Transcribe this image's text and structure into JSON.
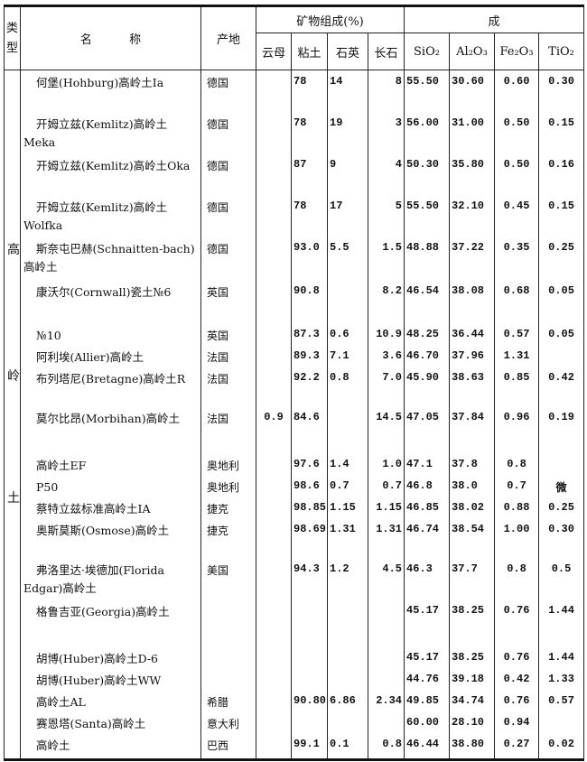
{
  "header": {
    "type": "类型",
    "name": "名          称",
    "origin": "产地",
    "mineral_group": "矿物组成(%)",
    "chem_group": "成",
    "mica": "云母",
    "clay": "粘土",
    "quartz": "石英",
    "feldspar": "长石",
    "sio2": "SiO₂",
    "al2o3": "Al₂O₃",
    "fe2o3": "Fe₂O₃",
    "tio2": "TiO₂"
  },
  "type_label": [
    "高",
    "岭",
    "土"
  ],
  "rows": [
    {
      "name": "何堡(Hohburg)高岭土Ia",
      "origin": "德国",
      "mica": "",
      "clay": "78",
      "quartz": "14",
      "feldspar": "8",
      "sio2": "55.50",
      "al2o3": "30.60",
      "fe2o3": "0.60",
      "tio2": "0.30"
    },
    {
      "name": "开姆立兹(Kemlitz)高岭土Meka",
      "origin": "德国",
      "mica": "",
      "clay": "78",
      "quartz": "19",
      "feldspar": "3",
      "sio2": "56.00",
      "al2o3": "31.00",
      "fe2o3": "0.50",
      "tio2": "0.15"
    },
    {
      "name": "开姆立兹(Kemlitz)高岭土Oka",
      "origin": "德国",
      "mica": "",
      "clay": "87",
      "quartz": "9",
      "feldspar": "4",
      "sio2": "50.30",
      "al2o3": "35.80",
      "fe2o3": "0.50",
      "tio2": "0.16"
    },
    {
      "name": "开姆立兹(Kemlitz)高岭土Wolfka",
      "origin": "德国",
      "mica": "",
      "clay": "78",
      "quartz": "17",
      "feldspar": "5",
      "sio2": "55.50",
      "al2o3": "32.10",
      "fe2o3": "0.45",
      "tio2": "0.15"
    },
    {
      "name": "斯奈屯巴赫(Schnaitten-bach)高岭土",
      "origin": "德国",
      "mica": "",
      "clay": "93.0",
      "quartz": "5.5",
      "feldspar": "1.5",
      "sio2": "48.88",
      "al2o3": "37.22",
      "fe2o3": "0.35",
      "tio2": "0.25"
    },
    {
      "name": "康沃尔(Cornwall)瓷土№6",
      "origin": "英国",
      "mica": "",
      "clay": "90.8",
      "quartz": "",
      "feldspar": "8.2",
      "sio2": "46.54",
      "al2o3": "38.08",
      "fe2o3": "0.68",
      "tio2": "0.05"
    },
    {
      "name": "№10",
      "origin": "英国",
      "mica": "",
      "clay": "87.3",
      "quartz": "0.6",
      "feldspar": "10.9",
      "sio2": "48.25",
      "al2o3": "36.44",
      "fe2o3": "0.57",
      "tio2": "0.05"
    },
    {
      "name": "阿利埃(Allier)高岭土",
      "origin": "法国",
      "mica": "",
      "clay": "89.3",
      "quartz": "7.1",
      "feldspar": "3.6",
      "sio2": "46.70",
      "al2o3": "37.96",
      "fe2o3": "1.31",
      "tio2": ""
    },
    {
      "name": "布列塔尼(Bretagne)高岭土R",
      "origin": "法国",
      "mica": "",
      "clay": "92.2",
      "quartz": "0.8",
      "feldspar": "7.0",
      "sio2": "45.90",
      "al2o3": "38.63",
      "fe2o3": "0.85",
      "tio2": "0.42"
    },
    {
      "name": "莫尔比昂(Morbihan)高岭土",
      "origin": "法国",
      "mica": "0.9",
      "clay": "84.6",
      "quartz": "",
      "feldspar": "14.5",
      "sio2": "47.05",
      "al2o3": "37.84",
      "fe2o3": "0.96",
      "tio2": "0.19"
    },
    {
      "name": "高岭土EF",
      "origin": "奥地利",
      "mica": "",
      "clay": "97.6",
      "quartz": "1.4",
      "feldspar": "1.0",
      "sio2": "47.1",
      "al2o3": "37.8",
      "fe2o3": "0.8",
      "tio2": ""
    },
    {
      "name": "P50",
      "origin": "奥地利",
      "mica": "",
      "clay": "98.6",
      "quartz": "0.7",
      "feldspar": "0.7",
      "sio2": "46.8",
      "al2o3": "38.0",
      "fe2o3": "0.7",
      "tio2": "微"
    },
    {
      "name": "蔡特立兹标准高岭土IA",
      "origin": "捷克",
      "mica": "",
      "clay": "98.85",
      "quartz": "1.15",
      "feldspar": "1.15",
      "sio2": "46.85",
      "al2o3": "38.02",
      "fe2o3": "0.88",
      "tio2": "0.25"
    },
    {
      "name": "奥斯莫斯(Osmose)高岭土",
      "origin": "捷克",
      "mica": "",
      "clay": "98.69",
      "quartz": "1.31",
      "feldspar": "1.31",
      "sio2": "46.74",
      "al2o3": "38.54",
      "fe2o3": "1.00",
      "tio2": "0.30"
    },
    {
      "name": "弗洛里达·埃德加(Florida Edgar)高岭土",
      "origin": "美国",
      "mica": "",
      "clay": "94.3",
      "quartz": "1.2",
      "feldspar": "4.5",
      "sio2": "46.3",
      "al2o3": "37.7",
      "fe2o3": "0.8",
      "tio2": "0.5"
    },
    {
      "name": "格鲁吉亚(Georgia)高岭土",
      "origin": "",
      "mica": "",
      "clay": "",
      "quartz": "",
      "feldspar": "",
      "sio2": "45.17",
      "al2o3": "38.25",
      "fe2o3": "0.76",
      "tio2": "1.44"
    },
    {
      "name": "胡博(Huber)高岭土D-6",
      "origin": "",
      "mica": "",
      "clay": "",
      "quartz": "",
      "feldspar": "",
      "sio2": "45.17",
      "al2o3": "38.25",
      "fe2o3": "0.76",
      "tio2": "1.44"
    },
    {
      "name": "胡博(Huber)高岭土WW",
      "origin": "",
      "mica": "",
      "clay": "",
      "quartz": "",
      "feldspar": "",
      "sio2": "44.76",
      "al2o3": "39.18",
      "fe2o3": "0.42",
      "tio2": "1.33"
    },
    {
      "name": "高岭土AL",
      "origin": "希腊",
      "mica": "",
      "clay": "90.80",
      "quartz": "6.86",
      "feldspar": "2.34",
      "sio2": "49.85",
      "al2o3": "34.74",
      "fe2o3": "0.76",
      "tio2": "0.57"
    },
    {
      "name": "赛恩塔(Santa)高岭土",
      "origin": "意大利",
      "mica": "",
      "clay": "",
      "quartz": "",
      "feldspar": "",
      "sio2": "60.00",
      "al2o3": "28.10",
      "fe2o3": "0.94",
      "tio2": ""
    },
    {
      "name": "高岭土",
      "origin": "巴西",
      "mica": "",
      "clay": "99.1",
      "quartz": "0.1",
      "feldspar": "0.8",
      "sio2": "46.44",
      "al2o3": "38.80",
      "fe2o3": "0.27",
      "tio2": "0.02"
    }
  ]
}
